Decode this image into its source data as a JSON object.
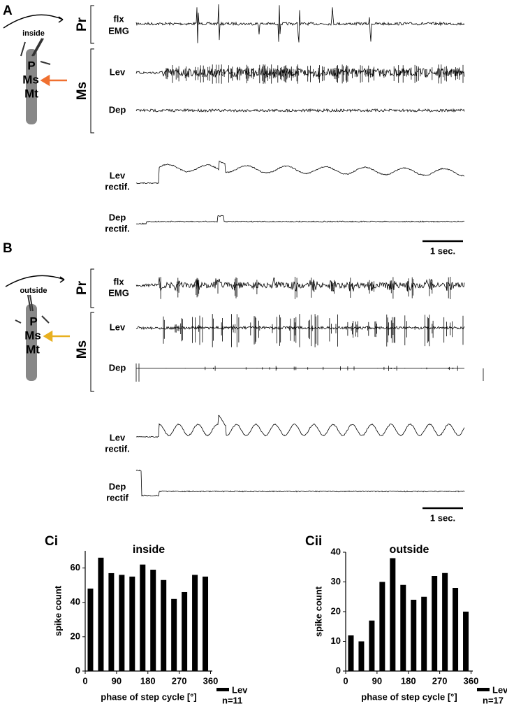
{
  "panel_a": {
    "label": "A",
    "side": "inside",
    "segments": [
      "P",
      "Ms",
      "Mt"
    ],
    "groups": [
      "Pr",
      "Ms"
    ],
    "traces": {
      "flx": [
        "flx",
        "EMG"
      ],
      "lev": "Lev",
      "dep": "Dep",
      "lev_rectif": [
        "Lev",
        "rectif."
      ],
      "dep_rectif": [
        "Dep",
        "rectif."
      ]
    },
    "scale_bar": "1 sec."
  },
  "panel_b": {
    "label": "B",
    "side": "outside",
    "segments": [
      "P",
      "Ms",
      "Mt"
    ],
    "groups": [
      "Pr",
      "Ms"
    ],
    "traces": {
      "flx": [
        "flx",
        "EMG"
      ],
      "lev": "Lev",
      "dep": "Dep",
      "lev_rectif": [
        "Lev",
        "rectif."
      ],
      "dep_rectif": [
        "Dep",
        "rectif"
      ]
    },
    "scale_bar": "1 sec."
  },
  "chart_data": [
    {
      "type": "bar",
      "panel_label": "Ci",
      "title": "inside",
      "x_label": "phase of step cycle [°]",
      "y_label": "spike count",
      "x": [
        15,
        45,
        75,
        105,
        135,
        165,
        195,
        225,
        255,
        285,
        315,
        345
      ],
      "series": [
        {
          "name": "Lev",
          "color": "#000000",
          "values": [
            48,
            66,
            57,
            56,
            55,
            62,
            59,
            53,
            42,
            46,
            56,
            55
          ]
        }
      ],
      "annotation": "n=11",
      "xlim": [
        0,
        365
      ],
      "ylim": [
        0,
        70
      ],
      "xticks": [
        0,
        90,
        180,
        270,
        360
      ],
      "yticks": [
        0,
        20,
        40,
        60
      ]
    },
    {
      "type": "bar",
      "panel_label": "Cii",
      "title": "outside",
      "x_label": "phase of step cycle [°]",
      "y_label": "spike count",
      "x": [
        15,
        45,
        75,
        105,
        135,
        165,
        195,
        225,
        255,
        285,
        315,
        345
      ],
      "series": [
        {
          "name": "Lev",
          "color": "#000000",
          "values": [
            12,
            10,
            17,
            30,
            38,
            29,
            24,
            25,
            32,
            33,
            28,
            20
          ]
        }
      ],
      "annotation": "n=17",
      "xlim": [
        0,
        365
      ],
      "ylim": [
        0,
        40
      ],
      "xticks": [
        0,
        90,
        180,
        270,
        360
      ],
      "yticks": [
        0,
        10,
        20,
        30,
        40
      ]
    }
  ]
}
